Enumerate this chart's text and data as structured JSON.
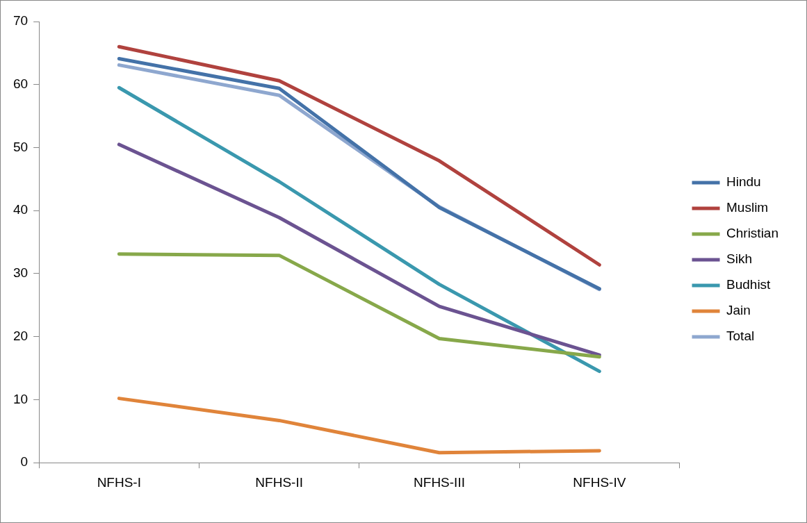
{
  "chart_data": {
    "type": "line",
    "categories": [
      "NFHS-I",
      "NFHS-II",
      "NFHS-III",
      "NFHS-IV"
    ],
    "series": [
      {
        "name": "Hindu",
        "color": "#4472a8",
        "values": [
          64.1,
          59.4,
          40.5,
          27.6
        ]
      },
      {
        "name": "Muslim",
        "color": "#b0423e",
        "values": [
          66.0,
          60.6,
          47.9,
          31.4
        ]
      },
      {
        "name": "Christian",
        "color": "#87a84a",
        "values": [
          33.1,
          32.9,
          19.7,
          16.8
        ]
      },
      {
        "name": "Sikh",
        "color": "#6b5391",
        "values": [
          50.5,
          38.9,
          24.8,
          17.1
        ]
      },
      {
        "name": "Budhist",
        "color": "#3a98ae",
        "values": [
          59.5,
          44.6,
          28.3,
          14.5
        ]
      },
      {
        "name": "Jain",
        "color": "#e0843a",
        "values": [
          10.2,
          6.7,
          1.6,
          1.9
        ]
      },
      {
        "name": "Total",
        "color": "#8ea7cf",
        "values": [
          63.1,
          58.3,
          40.6,
          27.5
        ]
      }
    ],
    "ylim": [
      0,
      70
    ],
    "yticks": [
      0,
      10,
      20,
      30,
      40,
      50,
      60,
      70
    ],
    "grid": false,
    "legend": "right",
    "marker": "none",
    "line_style": "solid"
  }
}
